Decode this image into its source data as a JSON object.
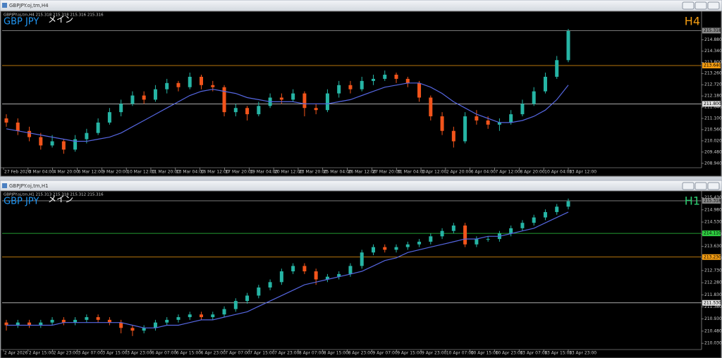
{
  "windows": [
    {
      "title": "GBPJPY.oj,tm,H4",
      "header": "GBPJPY.oj,tm,H4 215.318 215.318 215.316 215.316",
      "symbol": "GBP JPY",
      "tag": "メイン",
      "timeframe": "H4",
      "timeframe_color": "#f39c12",
      "chart": {
        "type": "candlestick",
        "up_color": "#26b5a5",
        "down_color": "#f2541b",
        "ma_color": "#5566e0",
        "ylim": [
          208.73,
          216.18
        ],
        "yticks": [
          {
            "value": 214.88,
            "label": "214.880"
          },
          {
            "value": 214.34,
            "label": "214.340"
          },
          {
            "value": 213.8,
            "label": "213.800"
          },
          {
            "value": 213.26,
            "label": "213.260"
          },
          {
            "value": 212.72,
            "label": "212.720"
          },
          {
            "value": 212.18,
            "label": "212.180"
          },
          {
            "value": 211.64,
            "label": "211.640"
          },
          {
            "value": 211.1,
            "label": "211.100"
          },
          {
            "value": 210.56,
            "label": "210.560"
          },
          {
            "value": 210.02,
            "label": "210.020"
          },
          {
            "value": 209.48,
            "label": "209.480"
          },
          {
            "value": 208.94,
            "label": "208.940"
          }
        ],
        "levels": [
          {
            "value": 215.318,
            "label": "215.318",
            "color": "#8a8a8a"
          },
          {
            "value": 213.64,
            "label": "213.640",
            "color": "#f39c12"
          },
          {
            "value": 211.8,
            "label": "211.800",
            "color": "#e0e0e0"
          }
        ],
        "x_labels": [
          "27 Feb 2026",
          "3 Mar 04:00",
          "4 Mar 20:00",
          "6 Mar 12:00",
          "9 Mar 20:00",
          "10 Mar 12:00",
          "11 Mar 20:00",
          "13 Mar 04:00",
          "16 Mar 12:00",
          "17 Mar 20:00",
          "19 Mar 04:00",
          "20 Mar 12:00",
          "23 Mar 20:00",
          "25 Mar 04:00",
          "26 Mar 12:00",
          "27 Mar 20:00",
          "31 Mar 04:00",
          "1 Apr 12:00",
          "2 Apr 20:00",
          "6 Apr 04:00",
          "7 Apr 12:00",
          "8 Apr 20:00",
          "10 Apr 04:00",
          "13 Apr 12:00"
        ],
        "candles": [
          [
            211.1,
            211.3,
            210.7,
            210.9
          ],
          [
            210.9,
            211.1,
            210.3,
            210.5
          ],
          [
            210.5,
            210.7,
            210.0,
            210.2
          ],
          [
            210.2,
            210.4,
            209.6,
            209.8
          ],
          [
            209.8,
            210.3,
            209.7,
            210.0
          ],
          [
            210.0,
            210.1,
            209.4,
            209.6
          ],
          [
            209.6,
            210.3,
            209.5,
            210.1
          ],
          [
            210.1,
            210.6,
            209.9,
            210.4
          ],
          [
            210.4,
            211.1,
            210.3,
            210.9
          ],
          [
            210.9,
            211.6,
            210.8,
            211.4
          ],
          [
            211.4,
            212.0,
            211.2,
            211.8
          ],
          [
            211.8,
            212.4,
            211.7,
            212.2
          ],
          [
            212.2,
            212.4,
            211.8,
            212.0
          ],
          [
            212.0,
            212.7,
            211.9,
            212.5
          ],
          [
            212.5,
            213.0,
            212.3,
            212.8
          ],
          [
            212.8,
            212.9,
            212.4,
            212.6
          ],
          [
            212.6,
            213.3,
            212.5,
            213.1
          ],
          [
            213.1,
            213.2,
            212.5,
            212.7
          ],
          [
            212.7,
            212.9,
            212.4,
            212.6
          ],
          [
            212.6,
            212.7,
            211.2,
            211.4
          ],
          [
            211.4,
            211.8,
            211.2,
            211.6
          ],
          [
            211.6,
            211.7,
            211.0,
            211.3
          ],
          [
            211.3,
            211.9,
            211.2,
            211.7
          ],
          [
            211.7,
            212.3,
            211.6,
            212.1
          ],
          [
            212.1,
            212.3,
            211.8,
            212.0
          ],
          [
            212.0,
            212.5,
            211.9,
            212.3
          ],
          [
            212.3,
            212.4,
            211.2,
            211.6
          ],
          [
            211.6,
            211.8,
            211.3,
            211.5
          ],
          [
            211.5,
            212.5,
            211.4,
            212.3
          ],
          [
            212.3,
            212.9,
            212.1,
            212.7
          ],
          [
            212.7,
            212.9,
            212.3,
            212.5
          ],
          [
            212.5,
            213.1,
            212.4,
            212.9
          ],
          [
            212.9,
            213.2,
            212.7,
            213.0
          ],
          [
            213.0,
            213.4,
            212.9,
            213.2
          ],
          [
            213.2,
            213.3,
            212.8,
            213.0
          ],
          [
            213.0,
            213.1,
            212.6,
            212.8
          ],
          [
            212.8,
            212.9,
            211.9,
            212.1
          ],
          [
            212.1,
            212.2,
            211.0,
            211.2
          ],
          [
            211.2,
            211.4,
            210.3,
            210.5
          ],
          [
            210.5,
            210.7,
            209.7,
            210.0
          ],
          [
            210.0,
            211.4,
            209.9,
            211.2
          ],
          [
            211.2,
            211.5,
            210.8,
            211.0
          ],
          [
            211.0,
            211.2,
            210.6,
            210.8
          ],
          [
            210.8,
            211.1,
            210.5,
            210.9
          ],
          [
            210.9,
            211.5,
            210.8,
            211.3
          ],
          [
            211.3,
            212.0,
            211.2,
            211.8
          ],
          [
            211.8,
            212.6,
            211.7,
            212.4
          ],
          [
            212.4,
            213.3,
            212.3,
            213.1
          ],
          [
            213.1,
            214.1,
            213.0,
            213.9
          ],
          [
            213.9,
            215.4,
            213.8,
            215.3
          ]
        ],
        "ma": [
          210.6,
          210.5,
          210.4,
          210.3,
          210.2,
          210.1,
          210.0,
          210.0,
          210.1,
          210.2,
          210.4,
          210.7,
          211.0,
          211.3,
          211.6,
          211.9,
          212.2,
          212.4,
          212.5,
          212.4,
          212.3,
          212.1,
          212.0,
          211.9,
          211.9,
          211.9,
          211.8,
          211.8,
          211.8,
          211.9,
          212.0,
          212.2,
          212.4,
          212.6,
          212.7,
          212.8,
          212.8,
          212.6,
          212.3,
          211.9,
          211.6,
          211.3,
          211.1,
          210.9,
          210.9,
          211.0,
          211.2,
          211.5,
          212.0,
          212.7
        ]
      }
    },
    {
      "title": "GBPJPY.oj,tm,H1",
      "header": "GBPJPY.oj,tm,H1 215.313 215.318 215.312 215.316",
      "symbol": "GBP JPY",
      "tag": "メイン",
      "timeframe": "H1",
      "timeframe_color": "#2ecc71",
      "chart": {
        "type": "candlestick",
        "up_color": "#26b5a5",
        "down_color": "#f2541b",
        "ma_color": "#5566e0",
        "ylim": [
          209.85,
          215.63
        ],
        "yticks": [
          {
            "value": 215.43,
            "label": "215.430"
          },
          {
            "value": 214.98,
            "label": "214.980"
          },
          {
            "value": 214.53,
            "label": "214.530"
          },
          {
            "value": 214.08,
            "label": "214.080"
          },
          {
            "value": 213.63,
            "label": "213.630"
          },
          {
            "value": 213.18,
            "label": "213.180"
          },
          {
            "value": 212.73,
            "label": "212.730"
          },
          {
            "value": 212.28,
            "label": "212.280"
          },
          {
            "value": 211.83,
            "label": "211.830"
          },
          {
            "value": 211.38,
            "label": "211.380"
          },
          {
            "value": 210.93,
            "label": "210.930"
          },
          {
            "value": 210.48,
            "label": "210.480"
          },
          {
            "value": 210.03,
            "label": "210.030"
          }
        ],
        "levels": [
          {
            "value": 215.318,
            "label": "215.318",
            "color": "#8a8a8a"
          },
          {
            "value": 214.11,
            "label": "214.110",
            "color": "#2ecc40"
          },
          {
            "value": 213.23,
            "label": "213.230",
            "color": "#f39c12"
          },
          {
            "value": 211.53,
            "label": "211.530",
            "color": "#e0e0e0"
          }
        ],
        "x_labels": [
          "2 Apr 2026",
          "2 Apr 15:00",
          "2 Apr 23:00",
          "3 Apr 07:00",
          "3 Apr 15:00",
          "3 Apr 23:00",
          "6 Apr 07:00",
          "6 Apr 15:00",
          "6 Apr 23:00",
          "7 Apr 07:00",
          "7 Apr 15:00",
          "7 Apr 23:00",
          "8 Apr 07:00",
          "8 Apr 15:00",
          "8 Apr 23:00",
          "9 Apr 07:00",
          "9 Apr 15:00",
          "9 Apr 23:00",
          "10 Apr 07:00",
          "10 Apr 15:00",
          "10 Apr 23:00",
          "13 Apr 07:00",
          "13 Apr 15:00",
          "13 Apr 23:00"
        ],
        "candles": [
          [
            210.8,
            210.9,
            210.5,
            210.7
          ],
          [
            210.7,
            210.9,
            210.6,
            210.8
          ],
          [
            210.8,
            210.9,
            210.6,
            210.7
          ],
          [
            210.7,
            210.9,
            210.6,
            210.8
          ],
          [
            210.8,
            211.0,
            210.7,
            210.9
          ],
          [
            210.9,
            211.0,
            210.7,
            210.8
          ],
          [
            210.8,
            211.0,
            210.7,
            210.9
          ],
          [
            210.9,
            211.1,
            210.8,
            211.0
          ],
          [
            211.0,
            211.1,
            210.8,
            210.9
          ],
          [
            210.9,
            211.0,
            210.7,
            210.8
          ],
          [
            210.8,
            210.9,
            210.4,
            210.6
          ],
          [
            210.6,
            210.7,
            210.3,
            210.5
          ],
          [
            210.5,
            210.7,
            210.4,
            210.6
          ],
          [
            210.6,
            210.9,
            210.5,
            210.8
          ],
          [
            210.8,
            211.0,
            210.7,
            210.9
          ],
          [
            210.9,
            211.1,
            210.8,
            211.0
          ],
          [
            211.0,
            211.2,
            210.9,
            211.1
          ],
          [
            211.1,
            211.2,
            210.9,
            211.0
          ],
          [
            211.0,
            211.2,
            210.9,
            211.1
          ],
          [
            211.1,
            211.4,
            211.0,
            211.3
          ],
          [
            211.3,
            211.7,
            211.2,
            211.6
          ],
          [
            211.6,
            211.9,
            211.5,
            211.8
          ],
          [
            211.8,
            212.2,
            211.7,
            212.1
          ],
          [
            212.1,
            212.4,
            212.0,
            212.3
          ],
          [
            212.3,
            212.8,
            212.2,
            212.7
          ],
          [
            212.7,
            213.0,
            212.6,
            212.9
          ],
          [
            212.9,
            213.0,
            212.6,
            212.7
          ],
          [
            212.7,
            212.8,
            212.2,
            212.4
          ],
          [
            212.4,
            212.6,
            212.3,
            212.5
          ],
          [
            212.5,
            212.7,
            212.4,
            212.6
          ],
          [
            212.6,
            213.0,
            212.5,
            212.9
          ],
          [
            212.9,
            213.5,
            212.8,
            213.4
          ],
          [
            213.4,
            213.7,
            213.3,
            213.6
          ],
          [
            213.6,
            213.7,
            213.4,
            213.5
          ],
          [
            213.5,
            213.7,
            213.4,
            213.6
          ],
          [
            213.6,
            213.8,
            213.5,
            213.7
          ],
          [
            213.7,
            213.9,
            213.6,
            213.8
          ],
          [
            213.8,
            214.1,
            213.7,
            214.0
          ],
          [
            214.0,
            214.3,
            213.9,
            214.2
          ],
          [
            214.2,
            214.5,
            214.1,
            214.4
          ],
          [
            214.4,
            214.5,
            213.6,
            213.7
          ],
          [
            213.7,
            214.0,
            213.6,
            213.9
          ],
          [
            213.9,
            214.0,
            213.8,
            213.9
          ],
          [
            213.9,
            214.2,
            213.8,
            214.1
          ],
          [
            214.1,
            214.4,
            214.0,
            214.3
          ],
          [
            214.3,
            214.6,
            214.2,
            214.5
          ],
          [
            214.5,
            214.8,
            214.4,
            214.7
          ],
          [
            214.7,
            215.0,
            214.6,
            214.9
          ],
          [
            214.9,
            215.2,
            214.8,
            215.1
          ],
          [
            215.1,
            215.4,
            215.0,
            215.3
          ]
        ],
        "ma": [
          210.7,
          210.7,
          210.7,
          210.7,
          210.7,
          210.8,
          210.8,
          210.8,
          210.8,
          210.8,
          210.8,
          210.7,
          210.6,
          210.6,
          210.7,
          210.7,
          210.8,
          210.9,
          210.9,
          211.0,
          211.1,
          211.2,
          211.4,
          211.6,
          211.8,
          212.0,
          212.2,
          212.3,
          212.4,
          212.5,
          212.6,
          212.7,
          212.9,
          213.1,
          213.2,
          213.4,
          213.5,
          213.6,
          213.7,
          213.8,
          213.9,
          213.9,
          214.0,
          214.0,
          214.1,
          214.2,
          214.3,
          214.5,
          214.7,
          214.9
        ]
      }
    }
  ]
}
